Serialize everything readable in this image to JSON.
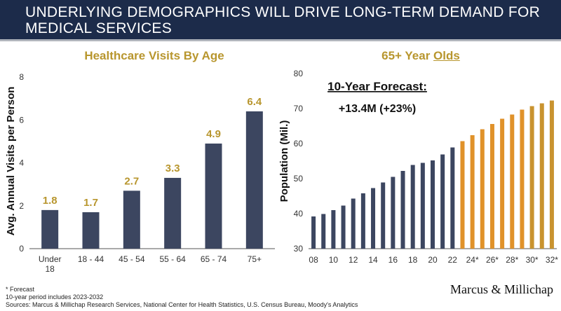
{
  "header": {
    "title": "UNDERLYING DEMOGRAPHICS WILL DRIVE LONG-TERM DEMAND FOR MEDICAL SERVICES"
  },
  "colors": {
    "header_bg": "#1c2b4a",
    "navy_bar": "#3c4660",
    "gold": "#b8962e",
    "orange_bar": "#e0922a",
    "gold_bar_end": "#c9932f"
  },
  "chart_data": [
    {
      "type": "bar",
      "title": "Healthcare Visits By Age",
      "ylabel": "Avg. Annual Visits per Person",
      "xlabel": "",
      "categories": [
        "Under 18",
        "18 - 44",
        "45 - 54",
        "55 - 64",
        "65 - 74",
        "75+"
      ],
      "values": [
        1.8,
        1.7,
        2.7,
        3.3,
        4.9,
        6.4
      ],
      "data_labels": [
        "1.8",
        "1.7",
        "2.7",
        "3.3",
        "4.9",
        "6.4"
      ],
      "ylim": [
        0,
        8
      ],
      "yticks": [
        0,
        2,
        4,
        6,
        8
      ],
      "grid": false
    },
    {
      "type": "bar",
      "title_prefix": "65+ Year ",
      "title_underlined": "Olds",
      "ylabel": "Population (Mil.)",
      "xlabel": "",
      "x": [
        "08",
        "09",
        "10",
        "11",
        "12",
        "13",
        "14",
        "15",
        "16",
        "17",
        "18",
        "19",
        "20",
        "21",
        "22",
        "23*",
        "24*",
        "25*",
        "26*",
        "27*",
        "28*",
        "29*",
        "30*",
        "31*",
        "32*"
      ],
      "xtick_labels": [
        "08",
        "10",
        "12",
        "14",
        "16",
        "18",
        "20",
        "22",
        "24*",
        "26*",
        "28*",
        "30*",
        "32*"
      ],
      "series": [
        {
          "values": [
            39.2,
            39.9,
            41.0,
            42.3,
            44.3,
            45.8,
            47.3,
            48.9,
            50.5,
            52.2,
            53.9,
            54.5,
            55.2,
            56.9,
            58.9,
            60.7,
            62.4,
            64.1,
            65.6,
            67.1,
            68.3,
            69.7,
            70.7,
            71.5,
            72.3
          ]
        }
      ],
      "forecast_start_index": 15,
      "ylim": [
        30,
        80
      ],
      "yticks": [
        30,
        40,
        50,
        60,
        70,
        80
      ],
      "annotation_title": "10-Year Forecast:",
      "annotation_value": "+13.4M (+23%)",
      "grid": false
    }
  ],
  "footer": {
    "line1": "* Forecast",
    "line2": "10-year period includes 2023-2032",
    "line3": "Sources: Marcus & Millichap Research Services, National Center for Health Statistics, U.S. Census Bureau, Moody's Analytics"
  },
  "logo": {
    "text": "Marcus & Millichap"
  }
}
